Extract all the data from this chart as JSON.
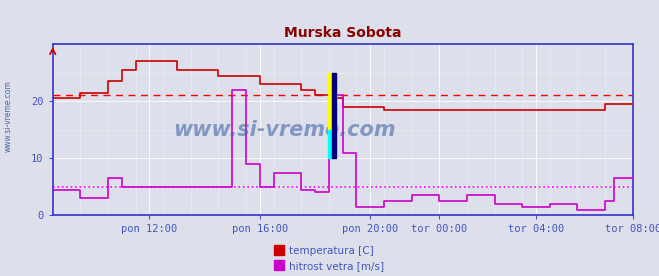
{
  "title": "Murska Sobota",
  "title_color": "#880000",
  "bg_color": "#dde0ea",
  "plot_bg_color": "#dde0ea",
  "xlabel_color": "#4455bb",
  "ylabel_color": "#4455bb",
  "grid_color": "#ffffff",
  "axis_color": "#3333cc",
  "watermark": "www.si-vreme.com",
  "watermark_color": "#4466aa",
  "ylabel_text": "www.si-vreme.com",
  "xlim": [
    0,
    1260
  ],
  "ylim": [
    0,
    30
  ],
  "yticks": [
    0,
    10,
    20
  ],
  "xtick_labels": [
    "pon 12:00",
    "pon 16:00",
    "pon 20:00",
    "tor 00:00",
    "tor 04:00",
    "tor 08:00"
  ],
  "xtick_positions": [
    210,
    450,
    690,
    840,
    1050,
    1260
  ],
  "temp_avg": 21.0,
  "wind_avg": 5.0,
  "temp_color": "#cc0000",
  "wind_color": "#cc00cc",
  "temp_avg_color": "#ff0000",
  "wind_avg_color": "#ff00ff",
  "legend": [
    "temperatura [C]",
    "hitrost vetra [m/s]"
  ],
  "temp_data": [
    [
      0,
      20.5
    ],
    [
      60,
      20.5
    ],
    [
      60,
      21.5
    ],
    [
      120,
      21.5
    ],
    [
      120,
      23.5
    ],
    [
      150,
      23.5
    ],
    [
      150,
      25.5
    ],
    [
      180,
      25.5
    ],
    [
      180,
      27.0
    ],
    [
      270,
      27.0
    ],
    [
      270,
      25.5
    ],
    [
      360,
      25.5
    ],
    [
      360,
      24.5
    ],
    [
      450,
      24.5
    ],
    [
      450,
      23.0
    ],
    [
      540,
      23.0
    ],
    [
      540,
      22.0
    ],
    [
      570,
      22.0
    ],
    [
      570,
      21.0
    ],
    [
      600,
      21.0
    ],
    [
      600,
      20.5
    ],
    [
      630,
      20.5
    ],
    [
      630,
      19.0
    ],
    [
      720,
      19.0
    ],
    [
      720,
      18.5
    ],
    [
      840,
      18.5
    ],
    [
      840,
      18.5
    ],
    [
      1050,
      18.5
    ],
    [
      1050,
      18.5
    ],
    [
      1200,
      18.5
    ],
    [
      1200,
      19.5
    ],
    [
      1260,
      19.5
    ]
  ],
  "wind_data": [
    [
      0,
      4.5
    ],
    [
      60,
      4.5
    ],
    [
      60,
      3.0
    ],
    [
      120,
      3.0
    ],
    [
      120,
      6.5
    ],
    [
      150,
      6.5
    ],
    [
      150,
      5.0
    ],
    [
      210,
      5.0
    ],
    [
      210,
      5.0
    ],
    [
      390,
      5.0
    ],
    [
      390,
      22.0
    ],
    [
      420,
      22.0
    ],
    [
      420,
      9.0
    ],
    [
      450,
      9.0
    ],
    [
      450,
      5.0
    ],
    [
      480,
      5.0
    ],
    [
      480,
      7.5
    ],
    [
      540,
      7.5
    ],
    [
      540,
      4.5
    ],
    [
      570,
      4.5
    ],
    [
      570,
      4.0
    ],
    [
      600,
      4.0
    ],
    [
      600,
      21.0
    ],
    [
      630,
      21.0
    ],
    [
      630,
      11.0
    ],
    [
      660,
      11.0
    ],
    [
      660,
      1.5
    ],
    [
      720,
      1.5
    ],
    [
      720,
      2.5
    ],
    [
      780,
      2.5
    ],
    [
      780,
      3.5
    ],
    [
      840,
      3.5
    ],
    [
      840,
      2.5
    ],
    [
      900,
      2.5
    ],
    [
      900,
      3.5
    ],
    [
      960,
      3.5
    ],
    [
      960,
      2.0
    ],
    [
      1020,
      2.0
    ],
    [
      1020,
      1.5
    ],
    [
      1080,
      1.5
    ],
    [
      1080,
      2.0
    ],
    [
      1140,
      2.0
    ],
    [
      1140,
      1.0
    ],
    [
      1200,
      1.0
    ],
    [
      1200,
      2.5
    ],
    [
      1220,
      2.5
    ],
    [
      1220,
      6.5
    ],
    [
      1260,
      6.5
    ]
  ]
}
